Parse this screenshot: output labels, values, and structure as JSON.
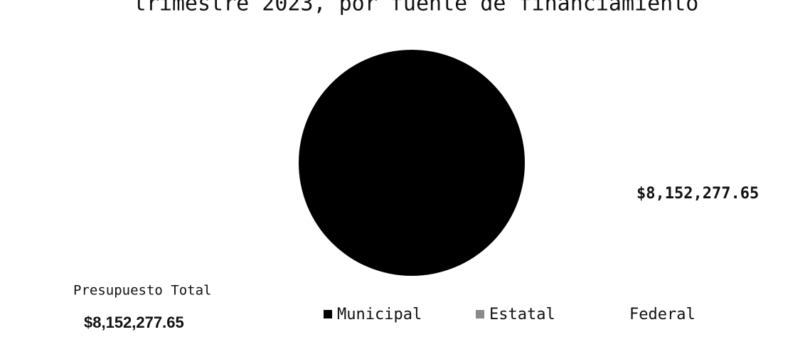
{
  "chart_data": {
    "type": "pie",
    "title": "trimestre 2023, por fuente de financiamiento",
    "categories": [
      "Municipal",
      "Estatal",
      "Federal"
    ],
    "series": [
      {
        "name": "Presupuesto",
        "values": [
          8152277.65,
          0,
          0
        ],
        "value_labels": [
          "$8,152,277.65",
          null,
          null
        ],
        "colors": [
          "#000000",
          "#8a8a8a",
          "#ffffff"
        ]
      }
    ],
    "annotations": {
      "total_label": "Presupuesto Total",
      "total_value": "$8,152,277.65"
    },
    "legend": "bottom"
  }
}
